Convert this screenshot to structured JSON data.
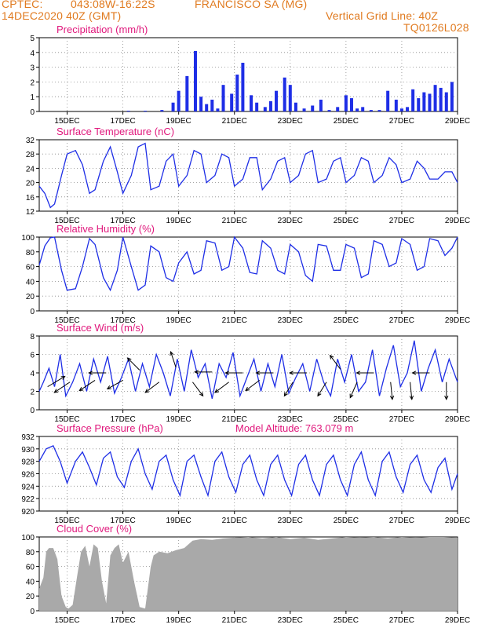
{
  "header": {
    "agency": "CPTEC:",
    "coords": "043:08W-16:22S",
    "station": "FRANCISCO SA (MG)",
    "date": "14DEC2020 40Z (GMT)",
    "grid_note": "Vertical Grid Line: 40Z",
    "model_code": "TQ0126L028"
  },
  "colors": {
    "header": "#e07a1f",
    "title": "#e0187c",
    "line": "#1e2ee6",
    "bar": "#1e2ee6",
    "cloud": "#a9a9a9",
    "arrow": "#000000"
  },
  "x_axis": {
    "labels": [
      "15DEC",
      "17DEC",
      "19DEC",
      "21DEC",
      "23DEC",
      "25DEC",
      "27DEC",
      "29DEC"
    ],
    "label_days": [
      1,
      3,
      5,
      7,
      9,
      11,
      13,
      15
    ],
    "day_range": [
      0,
      15
    ]
  },
  "panels": {
    "precip": {
      "title": "Precipitation (mm/h)"
    },
    "temp": {
      "title": "Surface Temperature (nC)"
    },
    "rh": {
      "title": "Relative Humidity (%)"
    },
    "wind": {
      "title": "Surface Wind (m/s)"
    },
    "pres": {
      "title": "Surface Pressure (hPa)",
      "altitude_label": "Model Altitude: 763.079 m"
    },
    "cloud": {
      "title": "Cloud Cover (%)"
    }
  },
  "chart_data": [
    {
      "id": "precip",
      "type": "bar",
      "title": "Precipitation (mm/h)",
      "ylim": [
        0,
        5
      ],
      "yticks": [
        0,
        1,
        2,
        3,
        4,
        5
      ],
      "x": [
        0.2,
        0.8,
        1.4,
        2.0,
        2.6,
        3.2,
        3.8,
        4.4,
        4.8,
        5.0,
        5.3,
        5.6,
        5.8,
        6.0,
        6.2,
        6.4,
        6.6,
        6.9,
        7.1,
        7.3,
        7.6,
        7.8,
        8.1,
        8.3,
        8.5,
        8.8,
        9.0,
        9.2,
        9.5,
        9.8,
        10.1,
        10.4,
        10.7,
        11.0,
        11.2,
        11.4,
        11.6,
        11.9,
        12.2,
        12.5,
        12.8,
        13.0,
        13.2,
        13.4,
        13.6,
        13.8,
        14.0,
        14.2,
        14.4,
        14.6,
        14.8
      ],
      "values": [
        0,
        0,
        0,
        0,
        0,
        0.05,
        0.05,
        0.1,
        0.6,
        1.4,
        2.4,
        4.1,
        1.0,
        0.5,
        0.8,
        0.2,
        1.8,
        1.2,
        2.5,
        3.3,
        1.1,
        0.6,
        0.3,
        0.7,
        1.4,
        2.3,
        1.8,
        0.6,
        0.2,
        0.4,
        0.8,
        0.1,
        0.3,
        1.1,
        0.9,
        0.2,
        0.3,
        0.1,
        0.1,
        1.4,
        0.8,
        0.2,
        0.3,
        1.5,
        0.9,
        1.3,
        1.2,
        1.8,
        1.6,
        1.3,
        2.0
      ]
    },
    {
      "id": "temp",
      "type": "line",
      "title": "Surface Temperature (nC)",
      "ylim": [
        12,
        32
      ],
      "yticks": [
        12,
        16,
        20,
        24,
        28,
        32
      ],
      "x": [
        0,
        0.2,
        0.4,
        0.55,
        0.8,
        1.0,
        1.3,
        1.55,
        1.8,
        2.0,
        2.3,
        2.55,
        2.8,
        3.0,
        3.3,
        3.55,
        3.8,
        4.0,
        4.3,
        4.55,
        4.8,
        5.0,
        5.3,
        5.55,
        5.8,
        6.0,
        6.3,
        6.55,
        6.8,
        7.0,
        7.3,
        7.55,
        7.8,
        8.0,
        8.3,
        8.55,
        8.8,
        9.0,
        9.3,
        9.55,
        9.8,
        10.0,
        10.3,
        10.55,
        10.8,
        11.0,
        11.3,
        11.55,
        11.8,
        12.0,
        12.3,
        12.55,
        12.8,
        13.0,
        13.3,
        13.55,
        13.8,
        14.0,
        14.3,
        14.55,
        14.8,
        15.0
      ],
      "values": [
        19,
        17,
        13,
        14,
        22,
        28,
        29,
        25,
        17,
        18,
        26,
        30,
        23,
        17,
        22,
        30,
        31,
        18,
        19,
        26,
        28,
        19,
        22,
        29,
        28,
        20,
        22,
        28,
        27,
        19,
        21,
        27,
        27,
        18,
        21,
        26,
        27,
        20,
        22,
        28,
        29,
        20,
        21,
        26,
        27,
        20,
        22,
        27,
        26,
        20,
        22,
        27,
        25,
        20,
        21,
        26,
        24,
        21,
        21,
        23,
        23,
        20
      ]
    },
    {
      "id": "rh",
      "type": "line",
      "title": "Relative Humidity (%)",
      "ylim": [
        0,
        100
      ],
      "yticks": [
        0,
        20,
        40,
        60,
        80,
        100
      ],
      "x": [
        0,
        0.2,
        0.4,
        0.55,
        0.8,
        1.0,
        1.3,
        1.55,
        1.8,
        2.0,
        2.3,
        2.55,
        2.8,
        3.0,
        3.3,
        3.55,
        3.8,
        4.0,
        4.3,
        4.55,
        4.8,
        5.0,
        5.3,
        5.55,
        5.8,
        6.0,
        6.3,
        6.55,
        6.8,
        7.0,
        7.3,
        7.55,
        7.8,
        8.0,
        8.3,
        8.55,
        8.8,
        9.0,
        9.3,
        9.55,
        9.8,
        10.0,
        10.3,
        10.55,
        10.8,
        11.0,
        11.3,
        11.55,
        11.8,
        12.0,
        12.3,
        12.55,
        12.8,
        13.0,
        13.3,
        13.55,
        13.8,
        14.0,
        14.3,
        14.55,
        14.8,
        15.0
      ],
      "values": [
        62,
        88,
        99,
        100,
        55,
        28,
        30,
        60,
        98,
        90,
        45,
        28,
        55,
        100,
        60,
        28,
        35,
        88,
        80,
        45,
        40,
        65,
        80,
        50,
        55,
        95,
        92,
        55,
        60,
        100,
        85,
        52,
        50,
        95,
        85,
        55,
        50,
        90,
        80,
        48,
        40,
        90,
        88,
        55,
        55,
        90,
        85,
        45,
        50,
        95,
        90,
        60,
        65,
        98,
        90,
        55,
        60,
        98,
        95,
        75,
        85,
        100
      ]
    },
    {
      "id": "wind",
      "type": "line",
      "title": "Surface Wind (m/s)",
      "ylim": [
        0,
        8
      ],
      "yticks": [
        0,
        2,
        4,
        6,
        8
      ],
      "x": [
        0,
        0.15,
        0.35,
        0.55,
        0.75,
        0.95,
        1.2,
        1.45,
        1.7,
        1.95,
        2.2,
        2.45,
        2.7,
        2.95,
        3.2,
        3.45,
        3.7,
        3.95,
        4.2,
        4.45,
        4.7,
        4.95,
        5.2,
        5.45,
        5.7,
        5.95,
        6.2,
        6.45,
        6.7,
        6.95,
        7.2,
        7.45,
        7.7,
        7.95,
        8.2,
        8.45,
        8.7,
        8.95,
        9.2,
        9.45,
        9.7,
        9.95,
        10.2,
        10.45,
        10.7,
        10.95,
        11.2,
        11.45,
        11.7,
        11.95,
        12.2,
        12.45,
        12.7,
        12.95,
        13.2,
        13.45,
        13.7,
        13.95,
        14.2,
        14.45,
        14.7,
        15.0
      ],
      "values": [
        2.0,
        3.0,
        4.5,
        2.5,
        6.0,
        1.5,
        3.0,
        5.0,
        2.0,
        5.5,
        3.0,
        5.8,
        1.8,
        3.5,
        5.5,
        2.0,
        5.0,
        2.5,
        6.0,
        4.0,
        1.5,
        5.5,
        2.0,
        6.5,
        3.5,
        5.0,
        1.2,
        5.0,
        3.5,
        6.2,
        1.5,
        3.5,
        5.5,
        2.0,
        5.0,
        2.5,
        6.0,
        1.8,
        3.5,
        5.0,
        2.0,
        5.5,
        3.0,
        1.5,
        5.5,
        3.0,
        6.0,
        2.0,
        3.0,
        6.5,
        1.5,
        4.5,
        7.0,
        2.5,
        4.0,
        7.5,
        2.0,
        4.5,
        6.5,
        3.0,
        5.5,
        3.0
      ],
      "arrows": [
        {
          "day": 0.3,
          "speed": 2.5,
          "u": 1.0,
          "v": 0.6
        },
        {
          "day": 1.1,
          "speed": 3.0,
          "u": -0.9,
          "v": -0.6
        },
        {
          "day": 2.0,
          "speed": 3.2,
          "u": -0.9,
          "v": -0.6
        },
        {
          "day": 2.4,
          "speed": 4.0,
          "u": -1.0,
          "v": 0.0
        },
        {
          "day": 3.0,
          "speed": 3.2,
          "u": -0.9,
          "v": -0.5
        },
        {
          "day": 3.6,
          "speed": 4.3,
          "u": -0.7,
          "v": 0.7
        },
        {
          "day": 4.3,
          "speed": 3.0,
          "u": -0.8,
          "v": -0.6
        },
        {
          "day": 4.9,
          "speed": 4.6,
          "u": -0.3,
          "v": 0.9
        },
        {
          "day": 5.5,
          "speed": 3.0,
          "u": 0.6,
          "v": -0.8
        },
        {
          "day": 6.2,
          "speed": 4.1,
          "u": -1.0,
          "v": 0.0
        },
        {
          "day": 6.8,
          "speed": 3.0,
          "u": -0.8,
          "v": -0.6
        },
        {
          "day": 7.3,
          "speed": 4.0,
          "u": -1.0,
          "v": 0.0
        },
        {
          "day": 7.9,
          "speed": 3.2,
          "u": -0.8,
          "v": -0.6
        },
        {
          "day": 8.4,
          "speed": 4.0,
          "u": -1.0,
          "v": 0.0
        },
        {
          "day": 9.1,
          "speed": 3.0,
          "u": -0.5,
          "v": -0.8
        },
        {
          "day": 9.6,
          "speed": 4.0,
          "u": -1.0,
          "v": 0.0
        },
        {
          "day": 10.3,
          "speed": 3.0,
          "u": -0.5,
          "v": -0.8
        },
        {
          "day": 10.8,
          "speed": 4.4,
          "u": -0.6,
          "v": 0.8
        },
        {
          "day": 11.4,
          "speed": 3.0,
          "u": -0.4,
          "v": -0.9
        },
        {
          "day": 12.0,
          "speed": 4.0,
          "u": -1.0,
          "v": 0.0
        },
        {
          "day": 12.6,
          "speed": 3.0,
          "u": 0.1,
          "v": -1.0
        },
        {
          "day": 13.3,
          "speed": 3.0,
          "u": 0.1,
          "v": -1.0
        },
        {
          "day": 14.0,
          "speed": 4.0,
          "u": -1.0,
          "v": 0.0
        },
        {
          "day": 14.6,
          "speed": 3.0,
          "u": 0.0,
          "v": -1.0
        }
      ]
    },
    {
      "id": "pres",
      "type": "line",
      "title": "Surface Pressure (hPa)",
      "ylim": [
        920,
        932
      ],
      "yticks": [
        920,
        922,
        924,
        926,
        928,
        930,
        932
      ],
      "x": [
        0,
        0.25,
        0.5,
        0.75,
        1.0,
        1.3,
        1.55,
        1.8,
        2.05,
        2.3,
        2.55,
        2.8,
        3.05,
        3.3,
        3.55,
        3.8,
        4.05,
        4.3,
        4.55,
        4.8,
        5.05,
        5.3,
        5.55,
        5.8,
        6.05,
        6.3,
        6.55,
        6.8,
        7.05,
        7.3,
        7.55,
        7.8,
        8.05,
        8.3,
        8.55,
        8.8,
        9.05,
        9.3,
        9.55,
        9.8,
        10.05,
        10.3,
        10.55,
        10.8,
        11.05,
        11.3,
        11.55,
        11.8,
        12.05,
        12.3,
        12.55,
        12.8,
        13.05,
        13.3,
        13.55,
        13.8,
        14.05,
        14.3,
        14.55,
        14.8,
        15.0
      ],
      "values": [
        928,
        930,
        930.5,
        928,
        924.5,
        928,
        929.5,
        927,
        924.2,
        928.5,
        929.5,
        925.5,
        923.8,
        928,
        930,
        926,
        923.5,
        928,
        929,
        925,
        922.5,
        928,
        929,
        925.5,
        922.5,
        928,
        929.5,
        925.5,
        923,
        927.5,
        929,
        925,
        922.5,
        927.5,
        929,
        925,
        922.5,
        927.5,
        929,
        925,
        922.5,
        927.5,
        929,
        925,
        922.5,
        927.5,
        929.5,
        925,
        922.5,
        928,
        929.5,
        925.5,
        923,
        927.5,
        929,
        925,
        923,
        927,
        928.5,
        923.5,
        926
      ]
    },
    {
      "id": "cloud",
      "type": "area",
      "title": "Cloud Cover (%)",
      "ylim": [
        0,
        100
      ],
      "yticks": [
        0,
        20,
        40,
        60,
        80,
        100
      ],
      "x": [
        0,
        0.15,
        0.25,
        0.35,
        0.5,
        0.65,
        0.8,
        0.95,
        1.05,
        1.2,
        1.35,
        1.5,
        1.65,
        1.8,
        1.95,
        2.1,
        2.25,
        2.4,
        2.55,
        2.7,
        2.85,
        3.0,
        3.2,
        3.4,
        3.6,
        3.8,
        4.0,
        4.1,
        4.3,
        4.6,
        4.9,
        5.2,
        5.5,
        5.8,
        6.2,
        6.6,
        7.0,
        7.5,
        8.0,
        8.5,
        9.0,
        9.5,
        10.0,
        10.5,
        11.0,
        11.5,
        12.0,
        12.5,
        13.0,
        13.5,
        14.0,
        14.5,
        15.0
      ],
      "values": [
        30,
        45,
        80,
        85,
        85,
        70,
        20,
        5,
        3,
        8,
        45,
        80,
        88,
        60,
        90,
        85,
        40,
        10,
        75,
        85,
        90,
        65,
        80,
        40,
        5,
        3,
        60,
        75,
        80,
        78,
        82,
        85,
        95,
        97,
        96,
        98,
        99,
        100,
        98,
        100,
        97,
        99,
        96,
        98,
        100,
        99,
        100,
        98,
        100,
        99,
        100,
        100,
        99
      ]
    }
  ]
}
